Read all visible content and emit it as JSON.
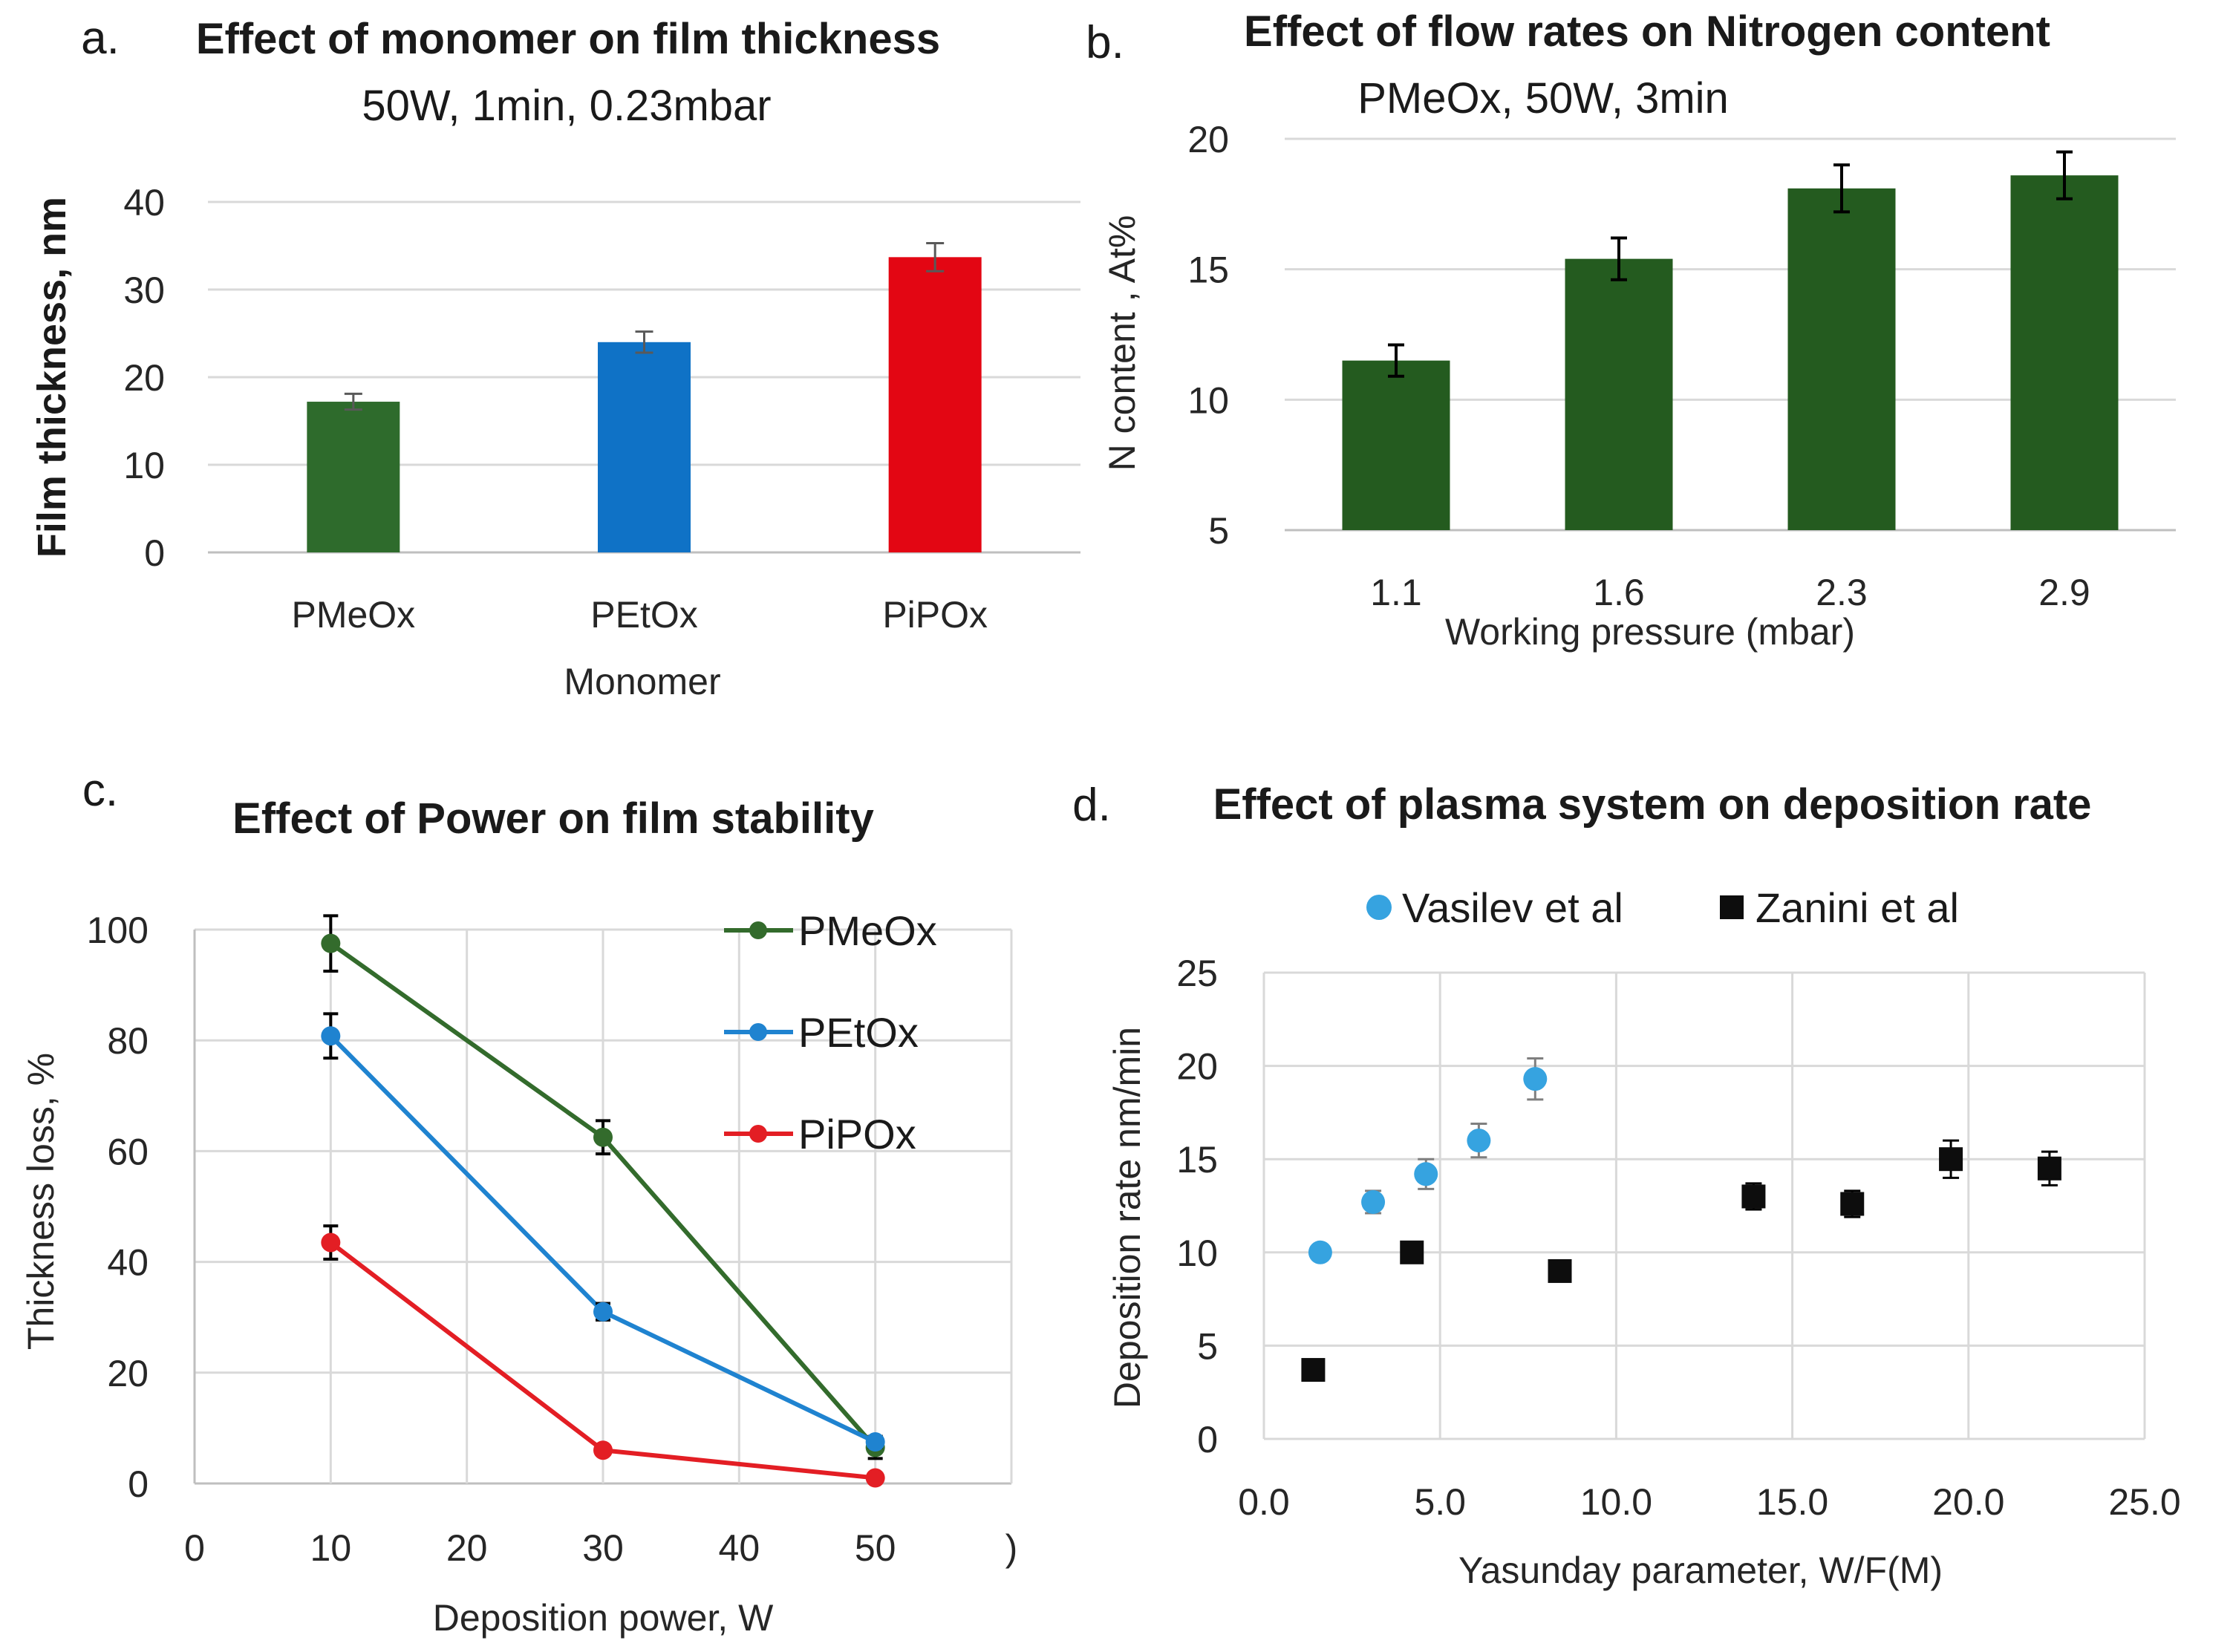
{
  "chart_data": [
    {
      "panel": "a.",
      "type": "bar",
      "title": "Effect of monomer on film thickness",
      "subtitle": "50W, 1min, 0.23mbar",
      "xlabel": "Monomer",
      "ylabel": "Film thickness, nm",
      "ylim": [
        0,
        40
      ],
      "yticks": [
        "0",
        "10",
        "20",
        "30",
        "40"
      ],
      "categories": [
        "PMeOx",
        "PEtOx",
        "PiPOx"
      ],
      "values": [
        17.2,
        24.0,
        33.7
      ],
      "errors": [
        0.9,
        1.2,
        1.6
      ],
      "colors": [
        "#2e6b2c",
        "#0f72c6",
        "#e30613"
      ],
      "grid": true
    },
    {
      "panel": "b.",
      "type": "bar",
      "title": "Effect of flow rates on Nitrogen content",
      "subtitle": "PMeOx, 50W, 3min",
      "xlabel": "Working pressure  (mbar)",
      "ylabel": "N content , At%",
      "ylim": [
        5,
        20
      ],
      "yticks": [
        "5",
        "10",
        "15",
        "20"
      ],
      "categories": [
        "1.1",
        "1.6",
        "2.3",
        "2.9"
      ],
      "values": [
        11.5,
        15.4,
        18.1,
        18.6
      ],
      "errors": [
        0.6,
        0.8,
        0.9,
        0.9
      ],
      "colors": [
        "#245b1f",
        "#245b1f",
        "#245b1f",
        "#245b1f"
      ],
      "grid": true
    },
    {
      "panel": "c.",
      "type": "line",
      "title": "Effect of Power on film stability",
      "xlabel": "Deposition power, W",
      "ylabel": "Thickness loss, %",
      "xlim": [
        0,
        60
      ],
      "ylim": [
        0,
        100
      ],
      "xticks": [
        "0",
        "10",
        "20",
        "30",
        "40",
        "50",
        ")"
      ],
      "yticks": [
        "0",
        "20",
        "40",
        "60",
        "80",
        "100"
      ],
      "x": [
        10,
        30,
        50
      ],
      "series": [
        {
          "name": "PMeOx",
          "color": "#336b2c",
          "values": [
            97.5,
            62.5,
            6.5
          ],
          "errors": [
            5,
            3,
            2
          ]
        },
        {
          "name": "PEtOx",
          "color": "#1f83d0",
          "values": [
            80.8,
            31.0,
            7.5
          ],
          "errors": [
            4,
            1.5,
            1
          ]
        },
        {
          "name": "PiPOx",
          "color": "#e31e24",
          "values": [
            43.5,
            6.0,
            1.0
          ],
          "errors": [
            3,
            0.5,
            0.5
          ]
        }
      ],
      "legend": "top-right",
      "grid": true
    },
    {
      "panel": "d.",
      "type": "scatter",
      "title": "Effect of plasma system on deposition rate",
      "xlabel": "Yasunday parameter, W/F(M)",
      "ylabel": "Deposition rate nm/min",
      "xlim": [
        0,
        25
      ],
      "ylim": [
        0,
        25
      ],
      "xticks": [
        "0.0",
        "5.0",
        "10.0",
        "15.0",
        "20.0",
        "25.0"
      ],
      "yticks": [
        "0",
        "5",
        "10",
        "15",
        "20",
        "25"
      ],
      "series": [
        {
          "name": "Vasilev et al",
          "marker": "circle",
          "color": "#36a3e0",
          "x": [
            1.6,
            3.1,
            4.6,
            6.1,
            7.7
          ],
          "y": [
            10.0,
            12.7,
            14.2,
            16.0,
            19.3
          ],
          "errors": [
            0.4,
            0.6,
            0.8,
            0.9,
            1.1
          ]
        },
        {
          "name": "Zanini et al",
          "marker": "square",
          "color": "#0d0d0d",
          "x": [
            1.4,
            4.2,
            8.4,
            13.9,
            16.7,
            19.5,
            22.3
          ],
          "y": [
            3.7,
            10.0,
            9.0,
            13.0,
            12.6,
            15.0,
            14.5
          ],
          "errors": [
            0.3,
            0.4,
            0.3,
            0.7,
            0.7,
            1.0,
            0.9
          ]
        }
      ],
      "legend": "top",
      "grid": true
    }
  ]
}
